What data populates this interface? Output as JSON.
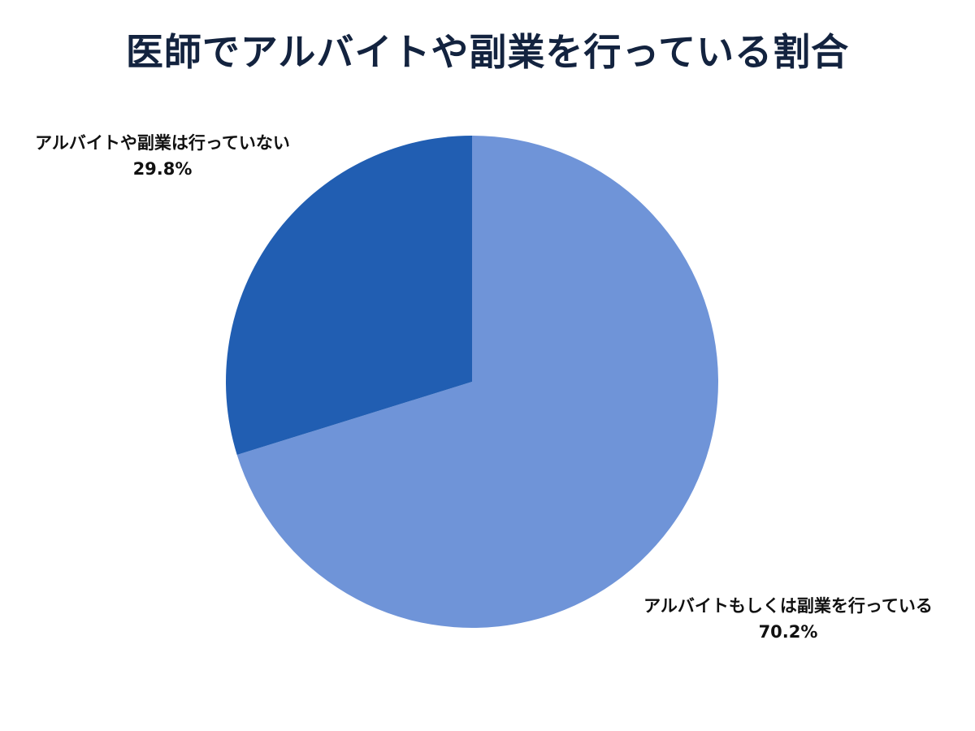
{
  "title": "医師でアルバイトや副業を行っている割合",
  "colors": {
    "title": "#13233f",
    "slice_no": "#215eb2",
    "slice_yes": "#6f94d8",
    "label": "#111111",
    "background": "#ffffff"
  },
  "labels": {
    "no": {
      "name": "アルバイトや副業は行っていない",
      "value": "29.8%"
    },
    "yes": {
      "name": "アルバイトもしくは副業を行っている",
      "value": "70.2%"
    }
  },
  "chart_data": {
    "type": "pie",
    "title": "医師でアルバイトや副業を行っている割合",
    "categories": [
      "アルバイトもしくは副業を行っている",
      "アルバイトや副業は行っていない"
    ],
    "values": [
      70.2,
      29.8
    ],
    "unit": "%",
    "colors": [
      "#6f94d8",
      "#215eb2"
    ],
    "start_angle": "12 o'clock",
    "direction": "clockwise (70.2% slice), 29.8% slice counter-clockwise from top",
    "legend": "none (data labels outside slices)"
  }
}
